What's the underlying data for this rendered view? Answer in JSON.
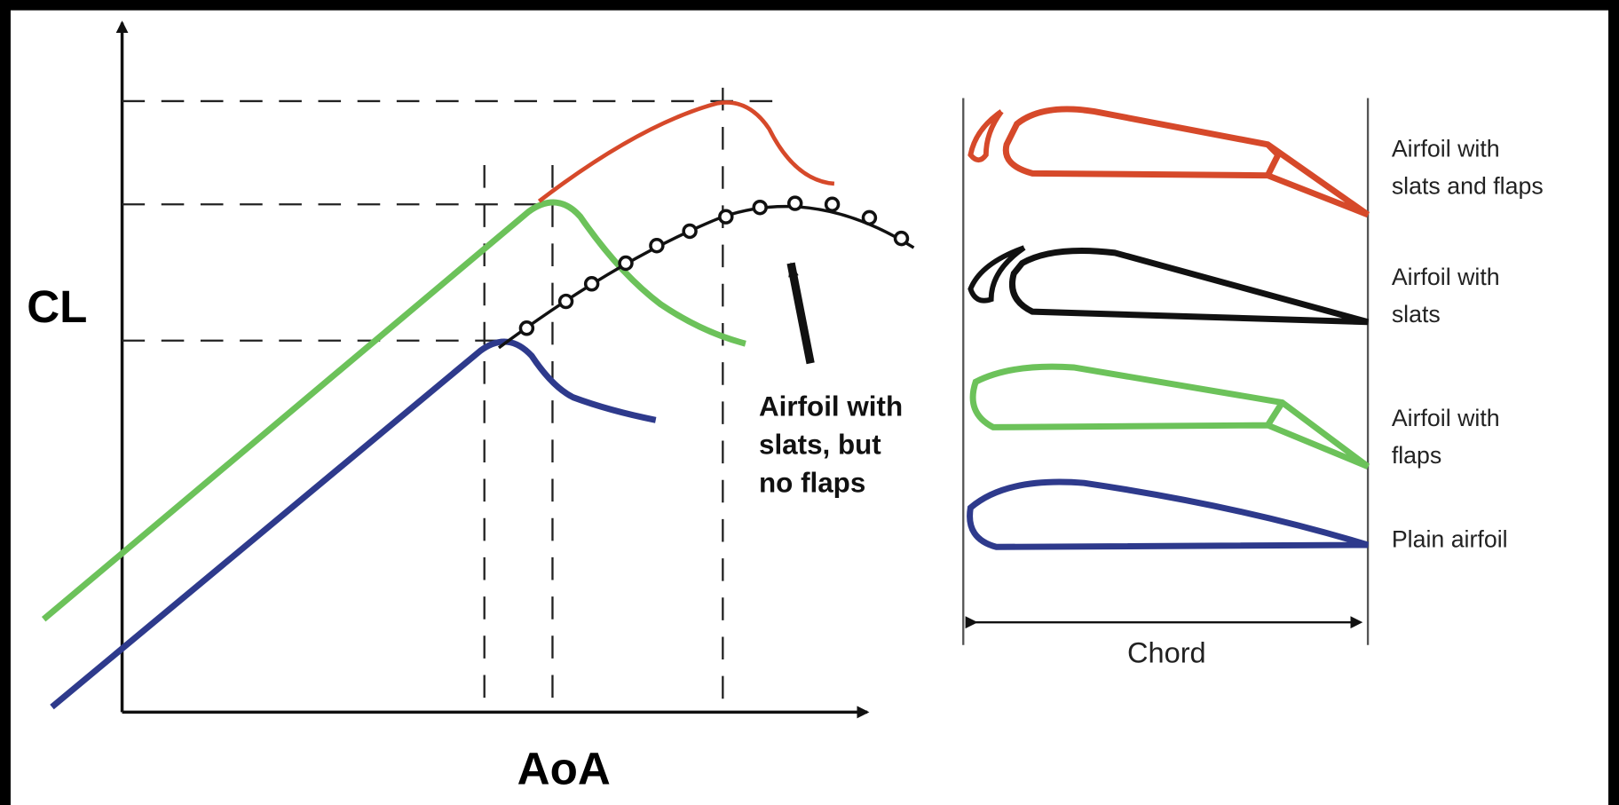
{
  "axes": {
    "y_label": "CL",
    "x_label": "AoA"
  },
  "annotation": {
    "lines": [
      "Airfoil with",
      "slats, but",
      "no flaps"
    ]
  },
  "airfoils": [
    {
      "lines": [
        "Airfoil with",
        "slats and flaps"
      ]
    },
    {
      "lines": [
        "Airfoil with",
        "slats"
      ]
    },
    {
      "lines": [
        "Airfoil with",
        "flaps"
      ]
    },
    {
      "lines": [
        "Plain airfoil"
      ]
    }
  ],
  "chord_label": "Chord"
}
